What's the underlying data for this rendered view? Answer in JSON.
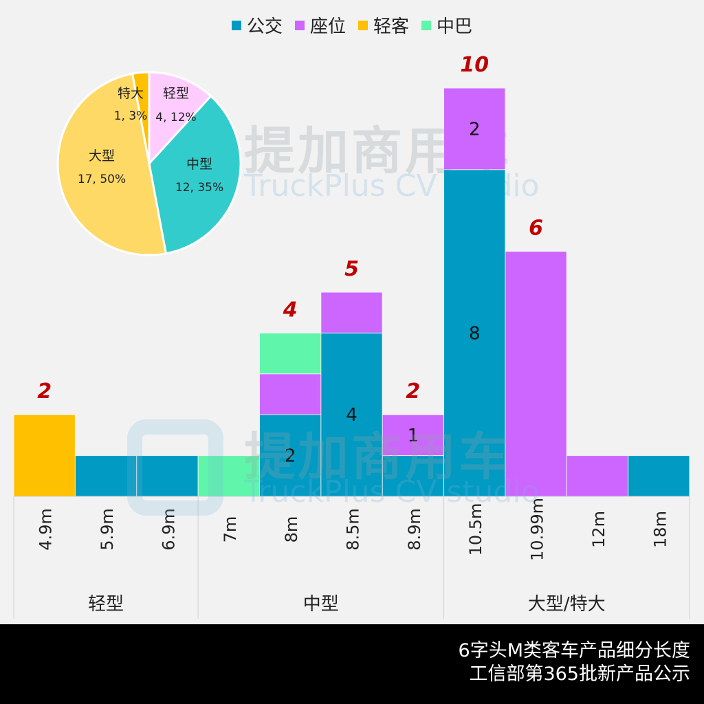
{
  "legend": [
    {
      "name": "公交",
      "color": "#009AC2"
    },
    {
      "name": "座位",
      "color": "#CC66FF"
    },
    {
      "name": "轻客",
      "color": "#FFC000"
    },
    {
      "name": "中巴",
      "color": "#5FF5AA"
    }
  ],
  "watermark": {
    "cn": "提加商用车",
    "en": "TruckPlus CV studio"
  },
  "footer": {
    "line1": "6字头M类客车产品细分长度",
    "line2": "工信部第365批新产品公示"
  },
  "chart_data": [
    {
      "type": "bar",
      "stacked": true,
      "categories": [
        "4.9m",
        "5.9m",
        "6.9m",
        "7m",
        "8m",
        "8.5m",
        "8.9m",
        "10.5m",
        "10.99m",
        "12m",
        "18m"
      ],
      "groups": [
        {
          "label": "轻型",
          "categories": [
            "4.9m",
            "5.9m",
            "6.9m"
          ]
        },
        {
          "label": "中型",
          "categories": [
            "7m",
            "8m",
            "8.5m",
            "8.9m"
          ]
        },
        {
          "label": "大型/特大",
          "categories": [
            "10.5m",
            "10.99m",
            "12m",
            "18m"
          ]
        }
      ],
      "series": [
        {
          "name": "公交",
          "values": [
            0,
            1,
            1,
            0,
            2,
            4,
            1,
            8,
            0,
            0,
            1
          ]
        },
        {
          "name": "座位",
          "values": [
            0,
            0,
            0,
            0,
            1,
            1,
            1,
            2,
            6,
            1,
            0
          ]
        },
        {
          "name": "轻客",
          "values": [
            2,
            0,
            0,
            0,
            0,
            0,
            0,
            0,
            0,
            0,
            0
          ]
        },
        {
          "name": "中巴",
          "values": [
            0,
            0,
            0,
            1,
            1,
            0,
            0,
            0,
            0,
            0,
            0
          ]
        }
      ],
      "segment_labels": [
        {
          "category": "8m",
          "series": "公交",
          "text": "2"
        },
        {
          "category": "8.5m",
          "series": "公交",
          "text": "4"
        },
        {
          "category": "8.9m",
          "series": "座位",
          "text": "1"
        },
        {
          "category": "10.5m",
          "series": "公交",
          "text": "8"
        },
        {
          "category": "10.5m",
          "series": "座位",
          "text": "2"
        }
      ],
      "total_labels": [
        {
          "category": "4.9m",
          "text": "2"
        },
        {
          "category": "8m",
          "text": "4"
        },
        {
          "category": "8.5m",
          "text": "5"
        },
        {
          "category": "8.9m",
          "text": "2"
        },
        {
          "category": "10.5m",
          "text": "10"
        },
        {
          "category": "10.99m",
          "text": "6"
        }
      ],
      "ylim": [
        0,
        10
      ],
      "grid": false,
      "legend_position": "top"
    },
    {
      "type": "pie",
      "slices": [
        {
          "label": "轻型",
          "value": 4,
          "percent": "12%",
          "text": "4, 12%",
          "color": "#FFCCFF"
        },
        {
          "label": "中型",
          "value": 12,
          "percent": "35%",
          "text": "12, 35%",
          "color": "#33CCCC"
        },
        {
          "label": "大型",
          "value": 17,
          "percent": "50%",
          "text": "17, 50%",
          "color": "#FFD966"
        },
        {
          "label": "特大",
          "value": 1,
          "percent": "3%",
          "text": "1, 3%",
          "color": "#FFC000"
        }
      ]
    }
  ]
}
